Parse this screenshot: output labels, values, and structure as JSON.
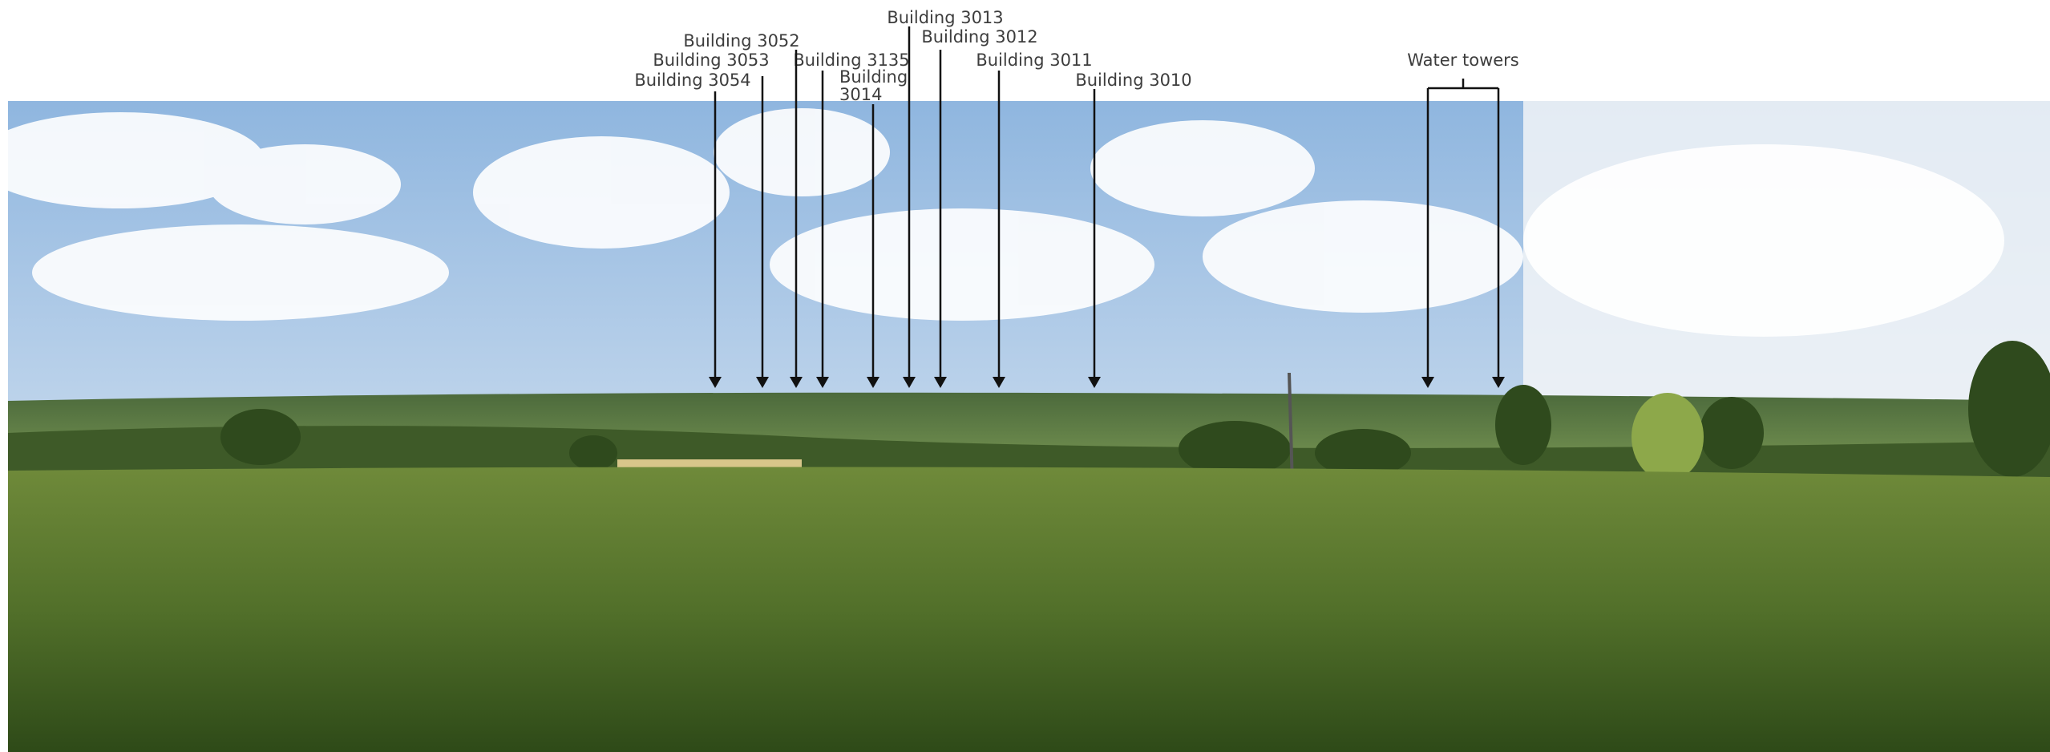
{
  "labels": {
    "b3013": "Building 3013",
    "b3052": "Building 3052",
    "b3012": "Building 3012",
    "b3053": "Building 3053",
    "b3135": "Building 3135",
    "b3011": "Building 3011",
    "b3054": "Building 3054",
    "b3014": [
      "Building",
      "3014"
    ],
    "b3010": "Building 3010",
    "water": "Water towers"
  }
}
